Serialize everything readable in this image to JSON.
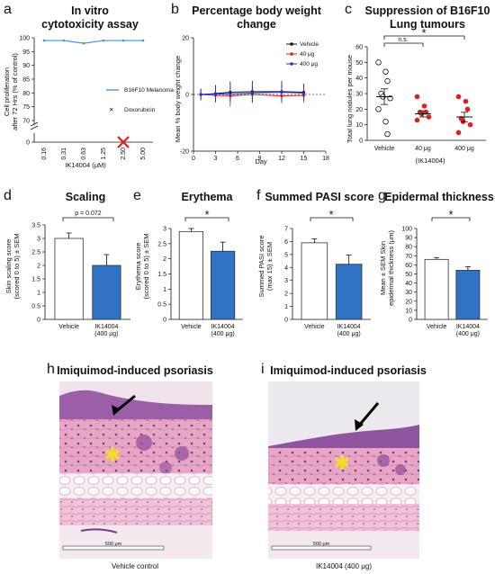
{
  "panels": {
    "a": {
      "letter": "a",
      "title": [
        "In vitro",
        "cytotoxicity assay"
      ],
      "ylabel": [
        "Cell proliferation",
        "after 72 Hrs (% of control)"
      ],
      "xlabel": "IK14004 (μM)",
      "legend": [
        "B16F10 Melanoma",
        "Doxorubicin"
      ],
      "colors": {
        "line": "#4a90d9",
        "marker": "#e02020"
      }
    },
    "b": {
      "letter": "b",
      "title": [
        "Percentage body weight",
        "change"
      ],
      "ylabel": "Mean % body weight change",
      "xlabel": "Day",
      "legend": [
        "Vehicle",
        "40 μg",
        "400 μg"
      ],
      "colors": [
        "#111111",
        "#e02020",
        "#2233bb"
      ]
    },
    "c": {
      "letter": "c",
      "title": [
        "Suppression of B16F10",
        "Lung tumours"
      ],
      "ylabel": "Total lung nodules per mouse",
      "sig": [
        "n.s.",
        "*"
      ],
      "xgroup": "(IK14004)"
    },
    "d": {
      "letter": "d",
      "title": "Scaling",
      "ylabel": [
        "Skin scaling score",
        "(scored 0 to 5) ± SEM"
      ],
      "sig": "p = 0.072"
    },
    "e": {
      "letter": "e",
      "title": "Erythema",
      "ylabel": [
        "Erythema score",
        "(scored 0 to 5) ± SEM"
      ],
      "sig": "*"
    },
    "f": {
      "letter": "f",
      "title": "Summed PASI score",
      "ylabel": [
        "Summed PASI score",
        "(max 15) ± SEM"
      ],
      "sig": "*"
    },
    "g": {
      "letter": "g",
      "title": "Epidermal thickness",
      "ylabel": [
        "Mean ± SEM Skin",
        "epidermal thickness (μm)"
      ],
      "sig": "*"
    },
    "h": {
      "letter": "h",
      "title": "Imiquimod-induced psoriasis",
      "scale": "500 μm",
      "caption": "Vehicle control"
    },
    "i": {
      "letter": "i",
      "title": "Imiquimod-induced psoriasis",
      "scale": "500 μm",
      "caption": "IK14004 (400 μg)"
    }
  },
  "chart_data": [
    {
      "id": "a",
      "type": "line",
      "categories": [
        "0.16",
        "0.31",
        "0.63",
        "1.25",
        "2.50",
        "5.00"
      ],
      "series": [
        {
          "name": "B16F10 Melanoma",
          "values": [
            99,
            99,
            98,
            99,
            99,
            99
          ]
        },
        {
          "name": "Doxorubicin",
          "values": [
            null,
            null,
            null,
            null,
            0,
            null
          ]
        }
      ],
      "yticks": [
        0,
        70,
        75,
        80,
        85,
        90,
        95,
        100
      ],
      "axis_break": true
    },
    {
      "id": "b",
      "type": "line",
      "x_ticks": [
        0,
        3,
        6,
        9,
        12,
        15,
        18
      ],
      "yticks": [
        -20,
        0,
        20
      ],
      "ylim": [
        -20,
        20
      ],
      "series": [
        {
          "name": "Vehicle",
          "x": [
            1,
            3,
            5,
            8,
            12,
            15
          ],
          "y": [
            0,
            0.3,
            0.8,
            1,
            1,
            0.8
          ],
          "err": [
            0.8,
            1.2,
            1.5,
            1.5,
            1.5,
            1.2
          ]
        },
        {
          "name": "40 μg",
          "x": [
            1,
            3,
            5,
            8,
            12,
            15
          ],
          "y": [
            0,
            -0.3,
            -0.5,
            0,
            -0.5,
            -0.3
          ],
          "err": [
            0.8,
            1.0,
            1.5,
            1.2,
            1.0,
            1.0
          ]
        },
        {
          "name": "400 μg",
          "x": [
            1,
            3,
            5,
            8,
            12,
            15
          ],
          "y": [
            0,
            0.2,
            0.2,
            0.5,
            0.8,
            0.5
          ],
          "err": [
            0.8,
            1.0,
            1.0,
            1.2,
            1.2,
            1.0
          ]
        }
      ]
    },
    {
      "id": "c",
      "type": "scatter",
      "categories": [
        "Vehicle",
        "40 μg",
        "400 μg"
      ],
      "yticks": [
        0,
        10,
        20,
        30,
        40,
        50,
        60
      ],
      "ylim": [
        0,
        60
      ],
      "groups": [
        {
          "name": "Vehicle",
          "points": [
            50,
            44,
            38,
            30,
            28,
            27,
            20,
            12,
            4
          ],
          "mean": 28,
          "sem": 5
        },
        {
          "name": "40 μg",
          "points": [
            28,
            22,
            18,
            18,
            17,
            15,
            13
          ],
          "mean": 17,
          "sem": 2
        },
        {
          "name": "400 μg",
          "points": [
            28,
            25,
            20,
            14,
            12,
            10,
            5
          ],
          "mean": 15,
          "sem": 3
        }
      ]
    },
    {
      "id": "d",
      "type": "bar",
      "categories": [
        "Vehicle",
        "IK14004 (400 μg)"
      ],
      "values": [
        3.0,
        2.0
      ],
      "errors": [
        0.2,
        0.4
      ],
      "yticks": [
        "0",
        "0.5",
        "1",
        "1.5",
        "2",
        "2.5",
        "3",
        "3.5"
      ],
      "ylim": [
        0,
        3.5
      ]
    },
    {
      "id": "e",
      "type": "bar",
      "categories": [
        "Vehicle",
        "IK14004 (400 μg)"
      ],
      "values": [
        2.9,
        2.25
      ],
      "errors": [
        0.1,
        0.3
      ],
      "yticks": [
        "0",
        "0.5",
        "1",
        "1.5",
        "2",
        "2.5",
        "3"
      ],
      "ylim": [
        0,
        3
      ]
    },
    {
      "id": "f",
      "type": "bar",
      "categories": [
        "Vehicle",
        "IK14004 (400 μg)"
      ],
      "values": [
        5.9,
        4.25
      ],
      "errors": [
        0.3,
        0.7
      ],
      "yticks": [
        "0",
        "1",
        "2",
        "3",
        "4",
        "5",
        "6",
        "7"
      ],
      "ylim": [
        0,
        7
      ]
    },
    {
      "id": "g",
      "type": "bar",
      "categories": [
        "Vehicle",
        "IK14004 (400 μg)"
      ],
      "values": [
        66,
        54
      ],
      "errors": [
        2,
        4
      ],
      "yticks": [
        "0",
        "10",
        "20",
        "30",
        "40",
        "50",
        "60",
        "70",
        "80",
        "90",
        "100"
      ],
      "ylim": [
        0,
        100
      ]
    }
  ],
  "colors": {
    "bar_treated": "#2f73c4",
    "bar_vehicle": "#ffffff",
    "red": "#e02020",
    "blue": "#2233bb"
  }
}
